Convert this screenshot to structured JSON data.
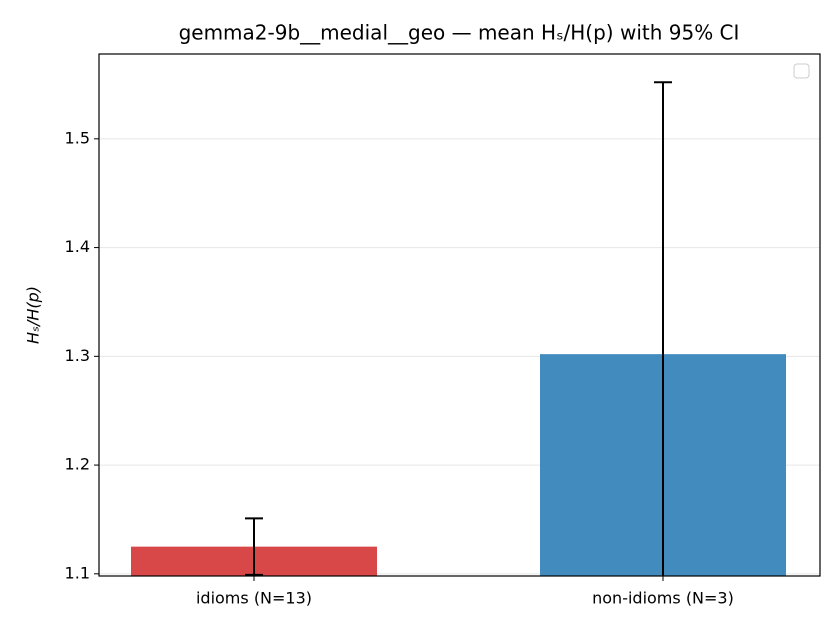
{
  "chart_data": {
    "type": "bar",
    "title": "gemma2-9b__medial__geo — mean Hₛ/H(p) with 95% CI",
    "y_label": "Hₛ/H(p)",
    "categories": [
      "idioms (N=13)",
      "non-idioms (N=3)"
    ],
    "values": [
      1.125,
      1.302
    ],
    "errors": [
      0.026,
      0.25
    ],
    "colors": [
      "#d94848",
      "#428bbf"
    ],
    "ylim": [
      1.098,
      1.578
    ],
    "yticks": [
      1.1,
      1.2,
      1.3,
      1.4,
      1.5
    ],
    "grid": true
  }
}
